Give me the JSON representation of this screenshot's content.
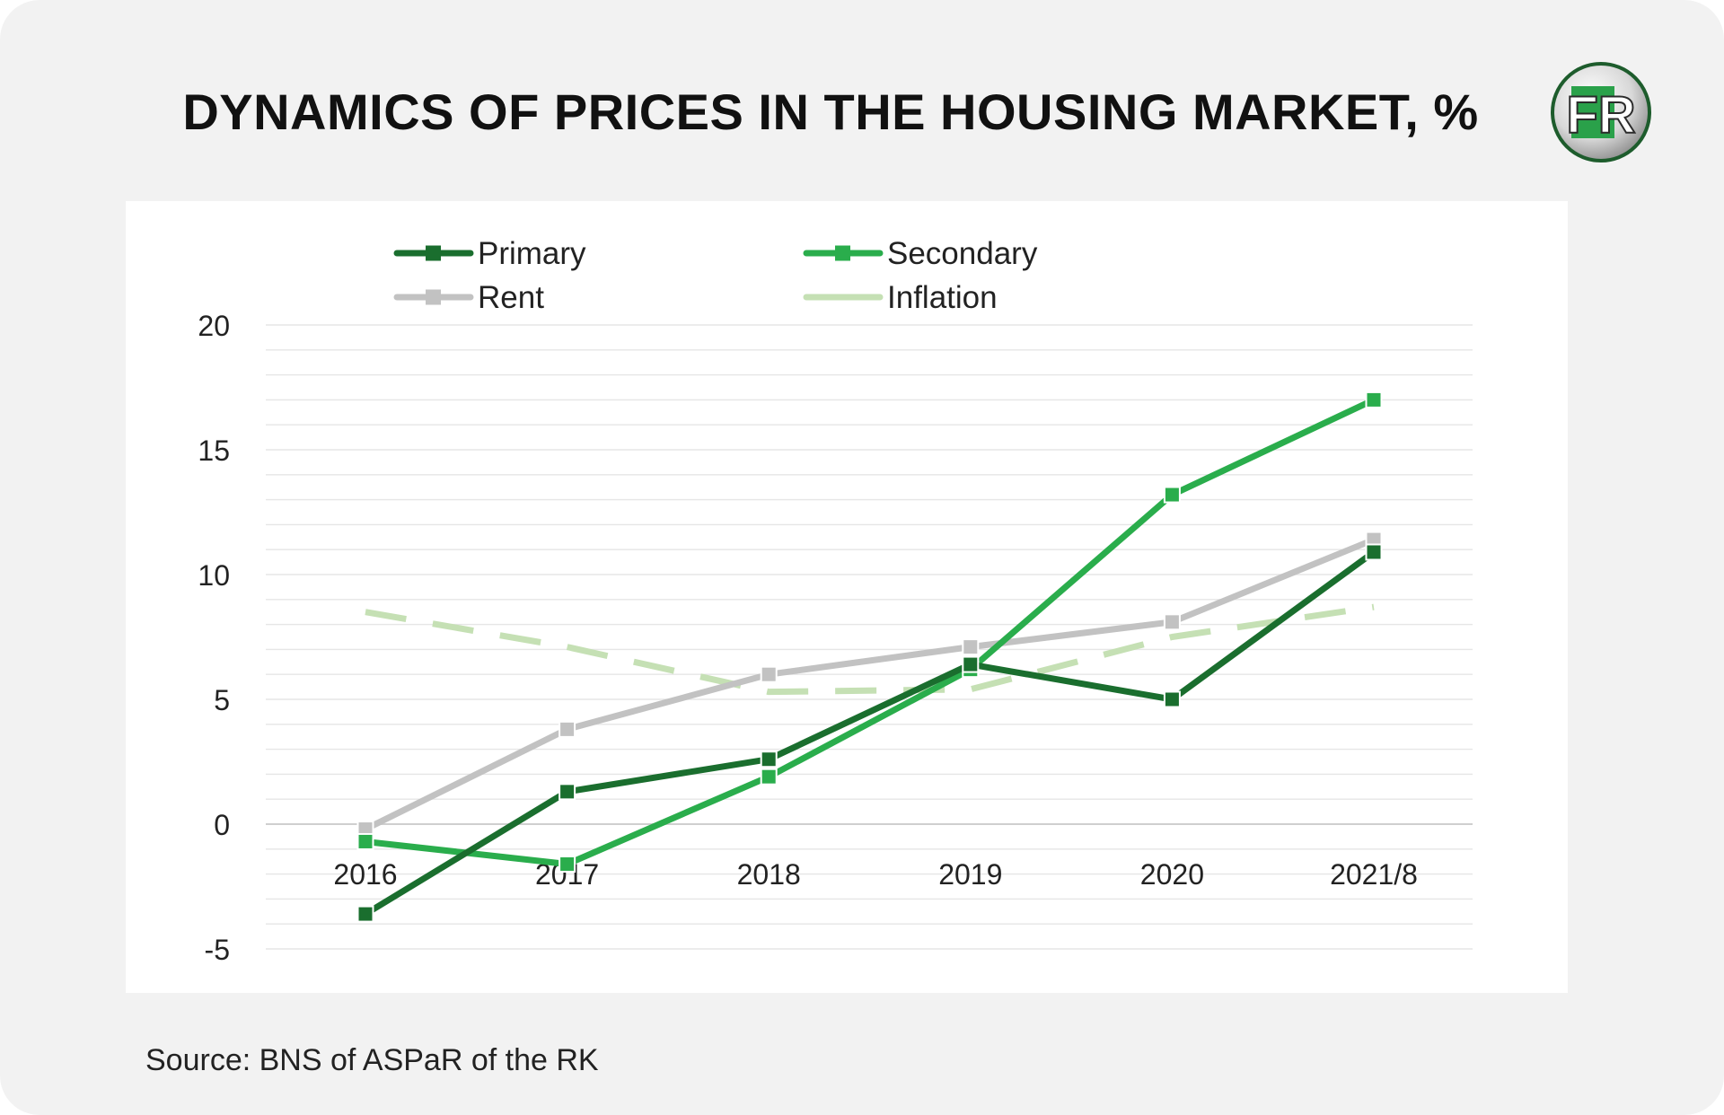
{
  "header": {
    "title": "DYNAMICS OF PRICES IN THE HOUSING MARKET, %",
    "logo_text": "FR"
  },
  "footer": {
    "source": "Source: BNS of ASPaR of the RK"
  },
  "colors": {
    "primary": "#1a6e2e",
    "secondary": "#2aad4c",
    "rent": "#c2c2c2",
    "inflation": "#c5e0b4",
    "grid": "#e6e6e6",
    "zero_line": "#cfcfcf"
  },
  "chart_data": {
    "type": "line",
    "title": "DYNAMICS OF PRICES IN THE HOUSING MARKET, %",
    "xlabel": "",
    "ylabel": "",
    "categories": [
      "2016",
      "2017",
      "2018",
      "2019",
      "2020",
      "2021/8"
    ],
    "ylim": [
      -5,
      20
    ],
    "yticks": [
      20,
      15,
      10,
      5,
      0,
      -5
    ],
    "grid": true,
    "legend_position": "top",
    "series": [
      {
        "name": "Primary",
        "values": [
          -3.6,
          1.3,
          2.6,
          6.4,
          5.0,
          10.9
        ],
        "color": "#1a6e2e",
        "style": "solid",
        "marker": "square"
      },
      {
        "name": "Secondary",
        "values": [
          -0.7,
          -1.6,
          1.9,
          6.2,
          13.2,
          17.0
        ],
        "color": "#2aad4c",
        "style": "solid",
        "marker": "square"
      },
      {
        "name": "Rent",
        "values": [
          -0.2,
          3.8,
          6.0,
          7.1,
          8.1,
          11.4
        ],
        "color": "#c2c2c2",
        "style": "solid",
        "marker": "square"
      },
      {
        "name": "Inflation",
        "values": [
          8.5,
          7.1,
          5.3,
          5.4,
          7.5,
          8.7
        ],
        "color": "#c5e0b4",
        "style": "dashed",
        "marker": "none"
      }
    ]
  }
}
